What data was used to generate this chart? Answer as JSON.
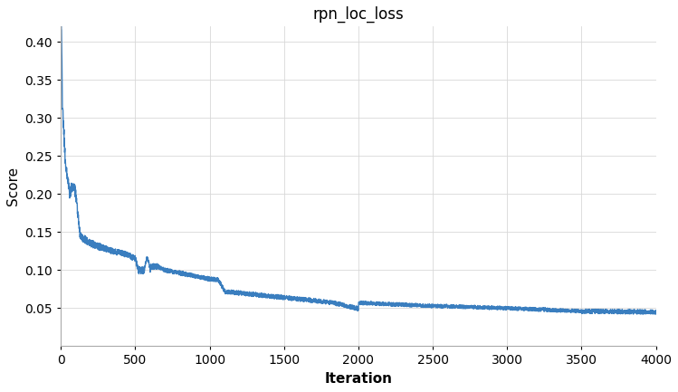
{
  "title": "rpn_loc_loss",
  "xlabel": "Iteration",
  "ylabel": "Score",
  "xlim": [
    0,
    4000
  ],
  "ylim": [
    0.0,
    0.42
  ],
  "yticks": [
    0.05,
    0.1,
    0.15,
    0.2,
    0.25,
    0.3,
    0.35,
    0.4
  ],
  "xticks": [
    0,
    500,
    1000,
    1500,
    2000,
    2500,
    3000,
    3500,
    4000
  ],
  "line_color": "#3a7ebf",
  "background_color": "#ffffff",
  "grid_color": "#d8d8d8",
  "title_fontsize": 12,
  "label_fontsize": 11,
  "tick_fontsize": 10
}
